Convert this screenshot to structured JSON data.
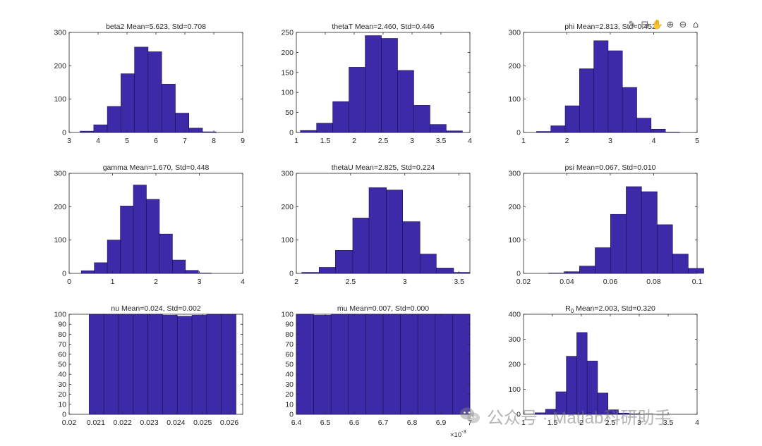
{
  "colors": {
    "bar_fill": "#3c2aa8",
    "bar_edge": "#1a1050",
    "axis": "#262626"
  },
  "toolbar": {
    "icons": [
      "brush-icon",
      "data-tips-icon",
      "pan-hand-icon",
      "zoom-in-icon",
      "zoom-out-icon",
      "home-icon"
    ]
  },
  "watermark": {
    "text": "公众号 · Matlab科研助手"
  },
  "chart_data": [
    {
      "type": "bar",
      "title": "beta2 Mean=5.623, Std=0.708",
      "xlim": [
        3,
        9
      ],
      "ylim": [
        0,
        300
      ],
      "xticks": [
        "3",
        "4",
        "5",
        "6",
        "7",
        "8",
        "9"
      ],
      "yticks": [
        "0",
        "100",
        "200",
        "300"
      ],
      "bin_edges": [
        3.38,
        3.85,
        4.32,
        4.79,
        5.26,
        5.73,
        6.2,
        6.67,
        7.14,
        7.61,
        8.08
      ],
      "values": [
        4,
        23,
        78,
        176,
        256,
        242,
        145,
        58,
        13,
        2
      ]
    },
    {
      "type": "bar",
      "title": "thetaT Mean=2.460, Std=0.446",
      "xlim": [
        1,
        4
      ],
      "ylim": [
        0,
        250
      ],
      "xticks": [
        "1",
        "1.5",
        "2",
        "2.5",
        "3",
        "3.5",
        "4"
      ],
      "yticks": [
        "0",
        "50",
        "100",
        "150",
        "200",
        "250"
      ],
      "bin_edges": [
        1.07,
        1.35,
        1.63,
        1.91,
        2.19,
        2.47,
        2.75,
        3.03,
        3.31,
        3.59,
        3.87
      ],
      "values": [
        5,
        23,
        77,
        163,
        242,
        235,
        155,
        68,
        20,
        4
      ]
    },
    {
      "type": "bar",
      "title": "phi Mean=2.813, Std=0.452",
      "xlim": [
        1,
        5
      ],
      "ylim": [
        0,
        300
      ],
      "xticks": [
        "1",
        "2",
        "3",
        "4",
        "5"
      ],
      "yticks": [
        "0",
        "100",
        "200",
        "300"
      ],
      "bin_edges": [
        1.3,
        1.63,
        1.96,
        2.29,
        2.62,
        2.95,
        3.28,
        3.61,
        3.94,
        4.27,
        4.6
      ],
      "values": [
        3,
        20,
        80,
        191,
        275,
        245,
        135,
        43,
        10,
        1
      ]
    },
    {
      "type": "bar",
      "title": "gamma Mean=1.670, Std=0.448",
      "xlim": [
        0,
        4
      ],
      "ylim": [
        0,
        300
      ],
      "xticks": [
        "0",
        "1",
        "2",
        "3",
        "4"
      ],
      "yticks": [
        "0",
        "100",
        "200",
        "300"
      ],
      "bin_edges": [
        0.28,
        0.58,
        0.88,
        1.18,
        1.48,
        1.78,
        2.08,
        2.38,
        2.68,
        2.98,
        3.28
      ],
      "values": [
        8,
        32,
        100,
        202,
        265,
        222,
        118,
        40,
        9,
        1
      ]
    },
    {
      "type": "bar",
      "title": "thetaU Mean=2.825, Std=0.224",
      "xlim": [
        2,
        3.6
      ],
      "ylim": [
        0,
        300
      ],
      "xticks": [
        "2",
        "2.5",
        "3",
        "3.5"
      ],
      "yticks": [
        "0",
        "100",
        "200",
        "300"
      ],
      "bin_edges": [
        2.05,
        2.21,
        2.36,
        2.52,
        2.67,
        2.83,
        2.98,
        3.14,
        3.29,
        3.45,
        3.6
      ],
      "values": [
        3,
        18,
        69,
        166,
        257,
        250,
        155,
        58,
        16,
        3
      ]
    },
    {
      "type": "bar",
      "title": "psi Mean=0.067, Std=0.010",
      "xlim": [
        0.02,
        0.1
      ],
      "ylim": [
        0,
        300
      ],
      "xticks": [
        "0.02",
        "0.04",
        "0.06",
        "0.08",
        "0.1"
      ],
      "yticks": [
        "0",
        "100",
        "200",
        "300"
      ],
      "bin_edges": [
        0.0315,
        0.0387,
        0.0458,
        0.053,
        0.0601,
        0.0673,
        0.0744,
        0.0816,
        0.0887,
        0.0959,
        0.1031
      ],
      "values": [
        1,
        5,
        22,
        77,
        177,
        260,
        245,
        146,
        58,
        15
      ]
    },
    {
      "type": "bar",
      "title": "nu Mean=0.024, Std=0.002",
      "xlim": [
        0.02,
        0.0265
      ],
      "ylim": [
        0,
        100
      ],
      "xticks": [
        "0.02",
        "0.021",
        "0.022",
        "0.023",
        "0.024",
        "0.025",
        "0.026"
      ],
      "yticks": [
        "0",
        "10",
        "20",
        "30",
        "40",
        "50",
        "60",
        "70",
        "80",
        "90",
        "100"
      ],
      "bin_edges": [
        0.02075,
        0.0213,
        0.02185,
        0.0224,
        0.02295,
        0.0235,
        0.02405,
        0.0246,
        0.02515,
        0.0257,
        0.02625
      ],
      "values": [
        100,
        100,
        100,
        100,
        100,
        99,
        98,
        99,
        100,
        101
      ]
    },
    {
      "type": "bar",
      "title": "mu Mean=0.007, Std=0.000",
      "xlim": [
        6.4,
        7.0
      ],
      "ylim": [
        0,
        100
      ],
      "x_exponent": "×10",
      "x_exponent_power": "-3",
      "xticks": [
        "6.4",
        "6.5",
        "6.6",
        "6.7",
        "6.8",
        "6.9",
        "7"
      ],
      "yticks": [
        "0",
        "10",
        "20",
        "30",
        "40",
        "50",
        "60",
        "70",
        "80",
        "90",
        "100"
      ],
      "bin_edges": [
        6.4,
        6.46,
        6.52,
        6.58,
        6.64,
        6.7,
        6.76,
        6.82,
        6.88,
        6.94,
        7.0
      ],
      "values": [
        101,
        99,
        100,
        100,
        100,
        100,
        100,
        100,
        100,
        100
      ]
    },
    {
      "type": "bar",
      "title_main": "R",
      "title_sub": "0",
      "title_rest": " Mean=2.003, Std=0.320",
      "xlim": [
        1,
        4
      ],
      "ylim": [
        0,
        400
      ],
      "xticks": [
        "1",
        "1.5",
        "2",
        "2.5",
        "3",
        "3.5",
        "4"
      ],
      "yticks": [
        "0",
        "100",
        "200",
        "300",
        "400"
      ],
      "bin_edges": [
        1.2,
        1.38,
        1.56,
        1.74,
        1.92,
        2.1,
        2.28,
        2.46,
        2.64,
        2.82,
        3.0
      ],
      "values": [
        6,
        20,
        90,
        232,
        327,
        213,
        85,
        18,
        5,
        2
      ]
    }
  ]
}
